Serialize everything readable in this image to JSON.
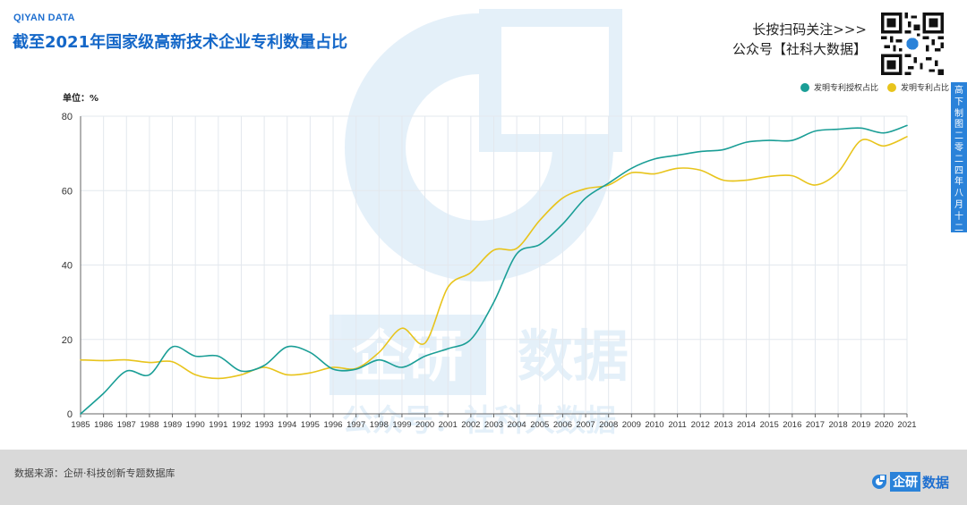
{
  "header": {
    "brand": "QIYAN DATA",
    "title": "截至2021年国家级高新技术企业专利数量占比",
    "promo_line1": "长按扫码关注>>>",
    "promo_line2": "公众号【社科大数据】"
  },
  "sidebar": {
    "text": "高下制图 二零二四年八月十二日"
  },
  "watermark": {
    "logo_box": "企研",
    "logo_text": "数据",
    "sub": "公众号：社科大数据"
  },
  "footer": {
    "source": "数据来源：企研·科技创新专题数据库",
    "logo_box": "企研",
    "logo_text": "数据"
  },
  "colors": {
    "teal": "#1a9e96",
    "yellow": "#e8c41c",
    "title_blue": "#1467c8",
    "sidebar_blue": "#2a82d9"
  },
  "chart_data": {
    "type": "line",
    "ylabel": "单位：%",
    "xlabel": "",
    "ylim": [
      0,
      80
    ],
    "yticks": [
      0,
      20,
      40,
      60,
      80
    ],
    "grid": true,
    "legend_position": "top-right",
    "x": [
      "1985",
      "1986",
      "1987",
      "1988",
      "1989",
      "1990",
      "1991",
      "1992",
      "1993",
      "1994",
      "1995",
      "1996",
      "1997",
      "1998",
      "1999",
      "2000",
      "2001",
      "2002",
      "2003",
      "2004",
      "2005",
      "2006",
      "2007",
      "2008",
      "2009",
      "2010",
      "2011",
      "2012",
      "2013",
      "2014",
      "2015",
      "2016",
      "2017",
      "2018",
      "2019",
      "2020",
      "2021"
    ],
    "series": [
      {
        "name": "发明专利授权占比",
        "color": "#1a9e96",
        "values": [
          0,
          5.5,
          11.5,
          10.5,
          18,
          15.5,
          15.5,
          11.5,
          13,
          18,
          16.5,
          12,
          12,
          14.5,
          12.5,
          15.5,
          17.5,
          20,
          30,
          43,
          45.5,
          51,
          58,
          62,
          66,
          68.5,
          69.5,
          70.5,
          71,
          73,
          73.5,
          73.5,
          76,
          76.5,
          76.8,
          75.5,
          77.5
        ]
      },
      {
        "name": "发明专利占比",
        "color": "#e8c41c",
        "values": [
          14.5,
          14.3,
          14.5,
          13.8,
          14,
          10.5,
          9.5,
          10.5,
          12.5,
          10.5,
          11,
          12.5,
          12.2,
          16.5,
          23,
          19,
          34,
          38,
          44,
          44.5,
          52,
          58,
          60.5,
          61.5,
          64.8,
          64.5,
          66,
          65.5,
          62.8,
          62.8,
          63.8,
          64,
          61.5,
          65,
          73.5,
          72,
          74.5
        ]
      }
    ]
  }
}
